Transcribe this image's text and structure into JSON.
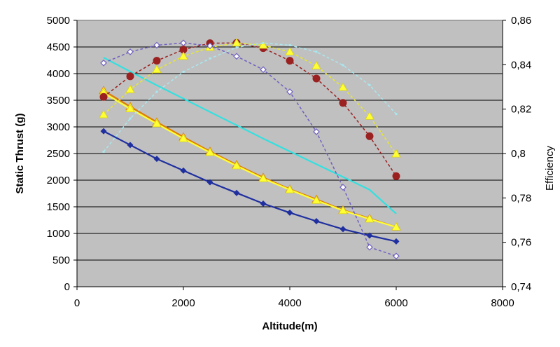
{
  "chart_data": {
    "type": "line",
    "xlabel": "Altitude(m)",
    "ylabel": "Static Thrust (g)",
    "y2label": "Efficiency",
    "xlim": [
      0,
      8000
    ],
    "ylim": [
      0,
      5000
    ],
    "y2lim": [
      0.74,
      0.86
    ],
    "x_ticks": [
      "0",
      "2000",
      "4000",
      "6000",
      "8000"
    ],
    "y_ticks": [
      "0",
      "500",
      "1000",
      "1500",
      "2000",
      "2500",
      "3000",
      "3500",
      "4000",
      "4500",
      "5000"
    ],
    "y2_ticks": [
      "0,74",
      "0,76",
      "0,78",
      "0,8",
      "0,82",
      "0,84",
      "0,86"
    ],
    "grid": true,
    "plot_background": "#c0c0c0",
    "x": [
      500,
      1000,
      1500,
      2000,
      2500,
      3000,
      3500,
      4000,
      4500,
      5000,
      5500,
      6000
    ],
    "series": [
      {
        "axis": "left",
        "color": "#1f2f9f",
        "marker": "diamond",
        "line": "solid",
        "values": [
          2920,
          2660,
          2400,
          2180,
          1960,
          1760,
          1560,
          1390,
          1230,
          1080,
          960,
          850
        ]
      },
      {
        "axis": "left",
        "color": "#e07b00",
        "marker": "triangle",
        "line": "solid",
        "values": [
          3680,
          3380,
          3090,
          2810,
          2540,
          2290,
          2050,
          1830,
          1640,
          1440,
          1280,
          1120
        ]
      },
      {
        "axis": "left",
        "color": "#ffff33",
        "marker": "triangle",
        "line": "solid",
        "values": [
          3640,
          3340,
          3060,
          2780,
          2520,
          2270,
          2030,
          1820,
          1620,
          1430,
          1270,
          1120
        ]
      },
      {
        "axis": "left",
        "color": "#33e0e0",
        "marker": "none",
        "line": "solid",
        "values": [
          4300,
          4040,
          3780,
          3530,
          3280,
          3030,
          2780,
          2540,
          2300,
          2060,
          1820,
          1370
        ]
      },
      {
        "axis": "right",
        "color": "#9b2020",
        "marker": "circle",
        "line": "dashed",
        "values": [
          0.8255,
          0.8348,
          0.8418,
          0.8468,
          0.8497,
          0.8498,
          0.8475,
          0.8418,
          0.8338,
          0.8228,
          0.8078,
          0.7898
        ]
      },
      {
        "axis": "right",
        "color": "#e8e830",
        "marker": "triangle",
        "line": "dashed",
        "values": [
          0.8175,
          0.8288,
          0.8378,
          0.8438,
          0.8478,
          0.8498,
          0.8488,
          0.8458,
          0.8395,
          0.8298,
          0.8168,
          0.7998
        ]
      },
      {
        "axis": "right",
        "color": "#7060c0",
        "marker": "diamond-open",
        "line": "dashed",
        "values": [
          0.8408,
          0.8458,
          0.8488,
          0.8498,
          0.8485,
          0.8438,
          0.8378,
          0.8278,
          0.8098,
          0.7848,
          0.7578,
          0.7538
        ]
      },
      {
        "axis": "right",
        "color": "#a8e8f0",
        "marker": "small",
        "line": "dashed",
        "values": [
          0.8008,
          0.8158,
          0.8278,
          0.8368,
          0.8428,
          0.8478,
          0.8498,
          0.8488,
          0.8458,
          0.8398,
          0.8308,
          0.8178
        ]
      }
    ]
  }
}
